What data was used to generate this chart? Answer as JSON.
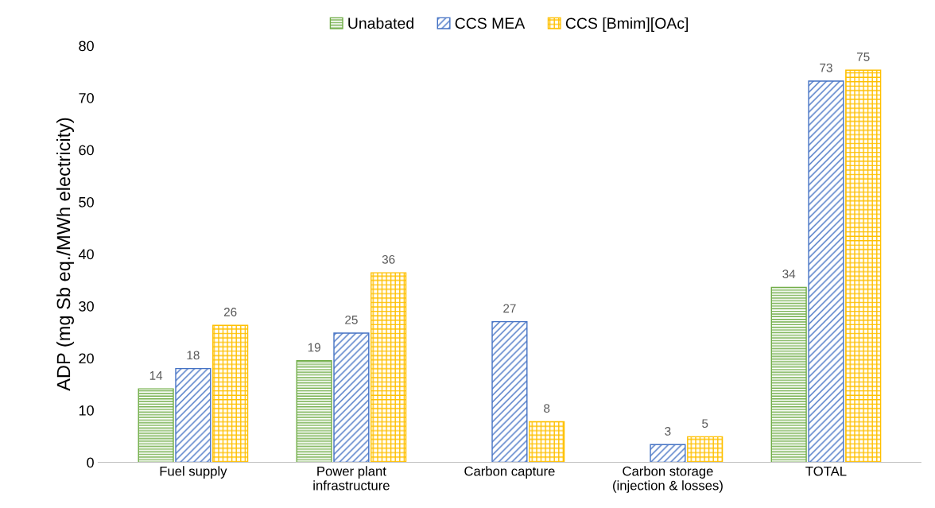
{
  "chart_data": {
    "type": "bar",
    "ylabel": "ADP (mg Sb eq./MWh electricity)",
    "categories": [
      "Fuel supply",
      "Power plant\ninfrastructure",
      "Carbon capture",
      "Carbon storage\n(injection & losses)",
      "TOTAL"
    ],
    "series": [
      {
        "name": "Unabated",
        "color": "#70ad47",
        "values": [
          14.1,
          19.5,
          null,
          null,
          33.6
        ],
        "value_labels": [
          "14",
          "19",
          null,
          null,
          "34"
        ]
      },
      {
        "name": "CCS MEA",
        "color": "#4472c4",
        "values": [
          18.0,
          24.8,
          27.0,
          3.4,
          73.2
        ],
        "value_labels": [
          "18",
          "25",
          "27",
          "3",
          "73"
        ]
      },
      {
        "name": "CCS [Bmim][OAc]",
        "color": "#ffc000",
        "values": [
          26.3,
          36.4,
          7.8,
          4.9,
          75.3
        ],
        "value_labels": [
          "26",
          "36",
          "8",
          "5",
          "75"
        ]
      }
    ],
    "ylim": [
      0,
      80
    ],
    "yticks": [
      0,
      10,
      20,
      30,
      40,
      50,
      60,
      70,
      80
    ],
    "grid": false,
    "legend": "top"
  }
}
